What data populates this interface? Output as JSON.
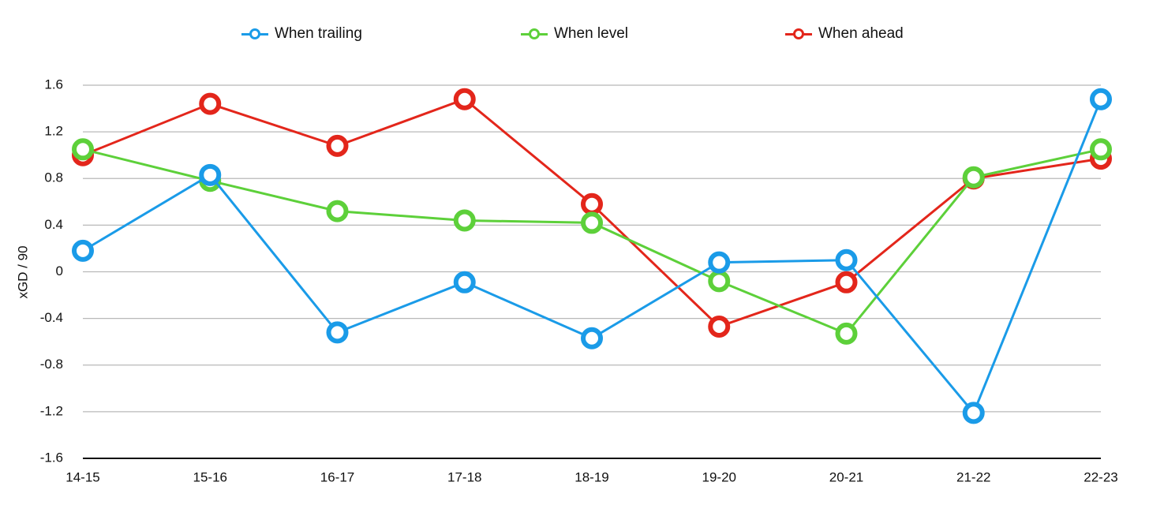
{
  "chart_data": {
    "type": "line",
    "title": "",
    "xlabel": "",
    "ylabel": "xGD / 90",
    "categories": [
      "14-15",
      "15-16",
      "16-17",
      "17-18",
      "18-19",
      "19-20",
      "20-21",
      "21-22",
      "22-23"
    ],
    "ylim": [
      -1.6,
      1.6
    ],
    "yticks": [
      "1.6",
      "1.2",
      "0.8",
      "0.4",
      "0",
      "-0.4",
      "-0.8",
      "-1.2",
      "-1.6"
    ],
    "ytick_values": [
      1.6,
      1.2,
      0.8,
      0.4,
      0,
      -0.4,
      -0.8,
      -1.2,
      -1.6
    ],
    "grid": true,
    "legend_position": "top",
    "series": [
      {
        "name": "When trailing",
        "color": "#1a9be8",
        "values": [
          0.18,
          0.83,
          -0.52,
          -0.09,
          -0.57,
          0.08,
          0.1,
          -1.21,
          1.48
        ]
      },
      {
        "name": "When level",
        "color": "#5dd03a",
        "values": [
          1.05,
          0.78,
          0.52,
          0.44,
          0.42,
          -0.08,
          -0.53,
          0.81,
          1.05
        ]
      },
      {
        "name": "When ahead",
        "color": "#e3261b",
        "values": [
          1.0,
          1.44,
          1.08,
          1.48,
          0.58,
          -0.47,
          -0.09,
          0.8,
          0.97
        ]
      }
    ]
  }
}
